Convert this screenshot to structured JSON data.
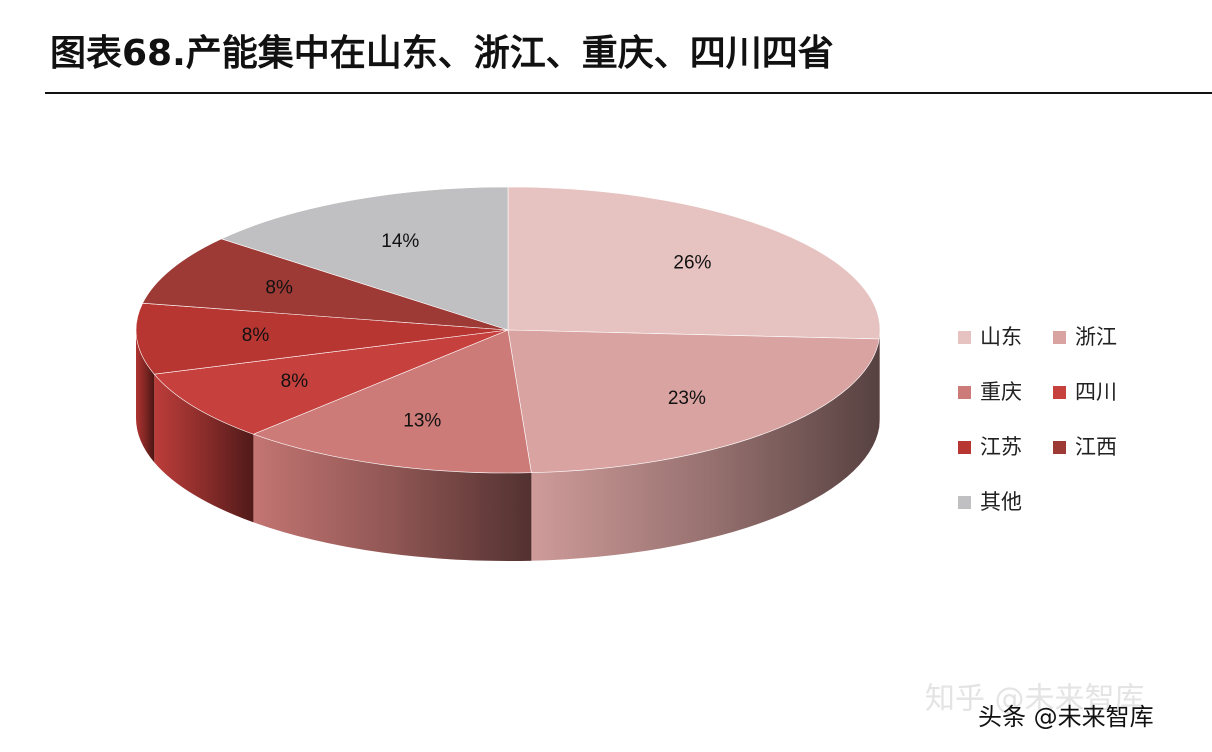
{
  "chart_data": {
    "type": "pie3d",
    "title": "图表68.产能集中在山东、浙江、重庆、四川四省",
    "categories": [
      "山东",
      "浙江",
      "重庆",
      "四川",
      "江苏",
      "江西",
      "其他"
    ],
    "values": [
      26,
      23,
      13,
      8,
      8,
      8,
      14
    ],
    "value_labels": [
      "26%",
      "23%",
      "13%",
      "8%",
      "8%",
      "8%",
      "14%"
    ],
    "colors": [
      "#e6c3c1",
      "#d9a3a1",
      "#cd7b78",
      "#c6403d",
      "#b83632",
      "#9e3a35",
      "#c0c0c2"
    ],
    "legend": "right"
  },
  "watermarks": [
    "知乎 @未来智库",
    "头条 @未来智库"
  ]
}
